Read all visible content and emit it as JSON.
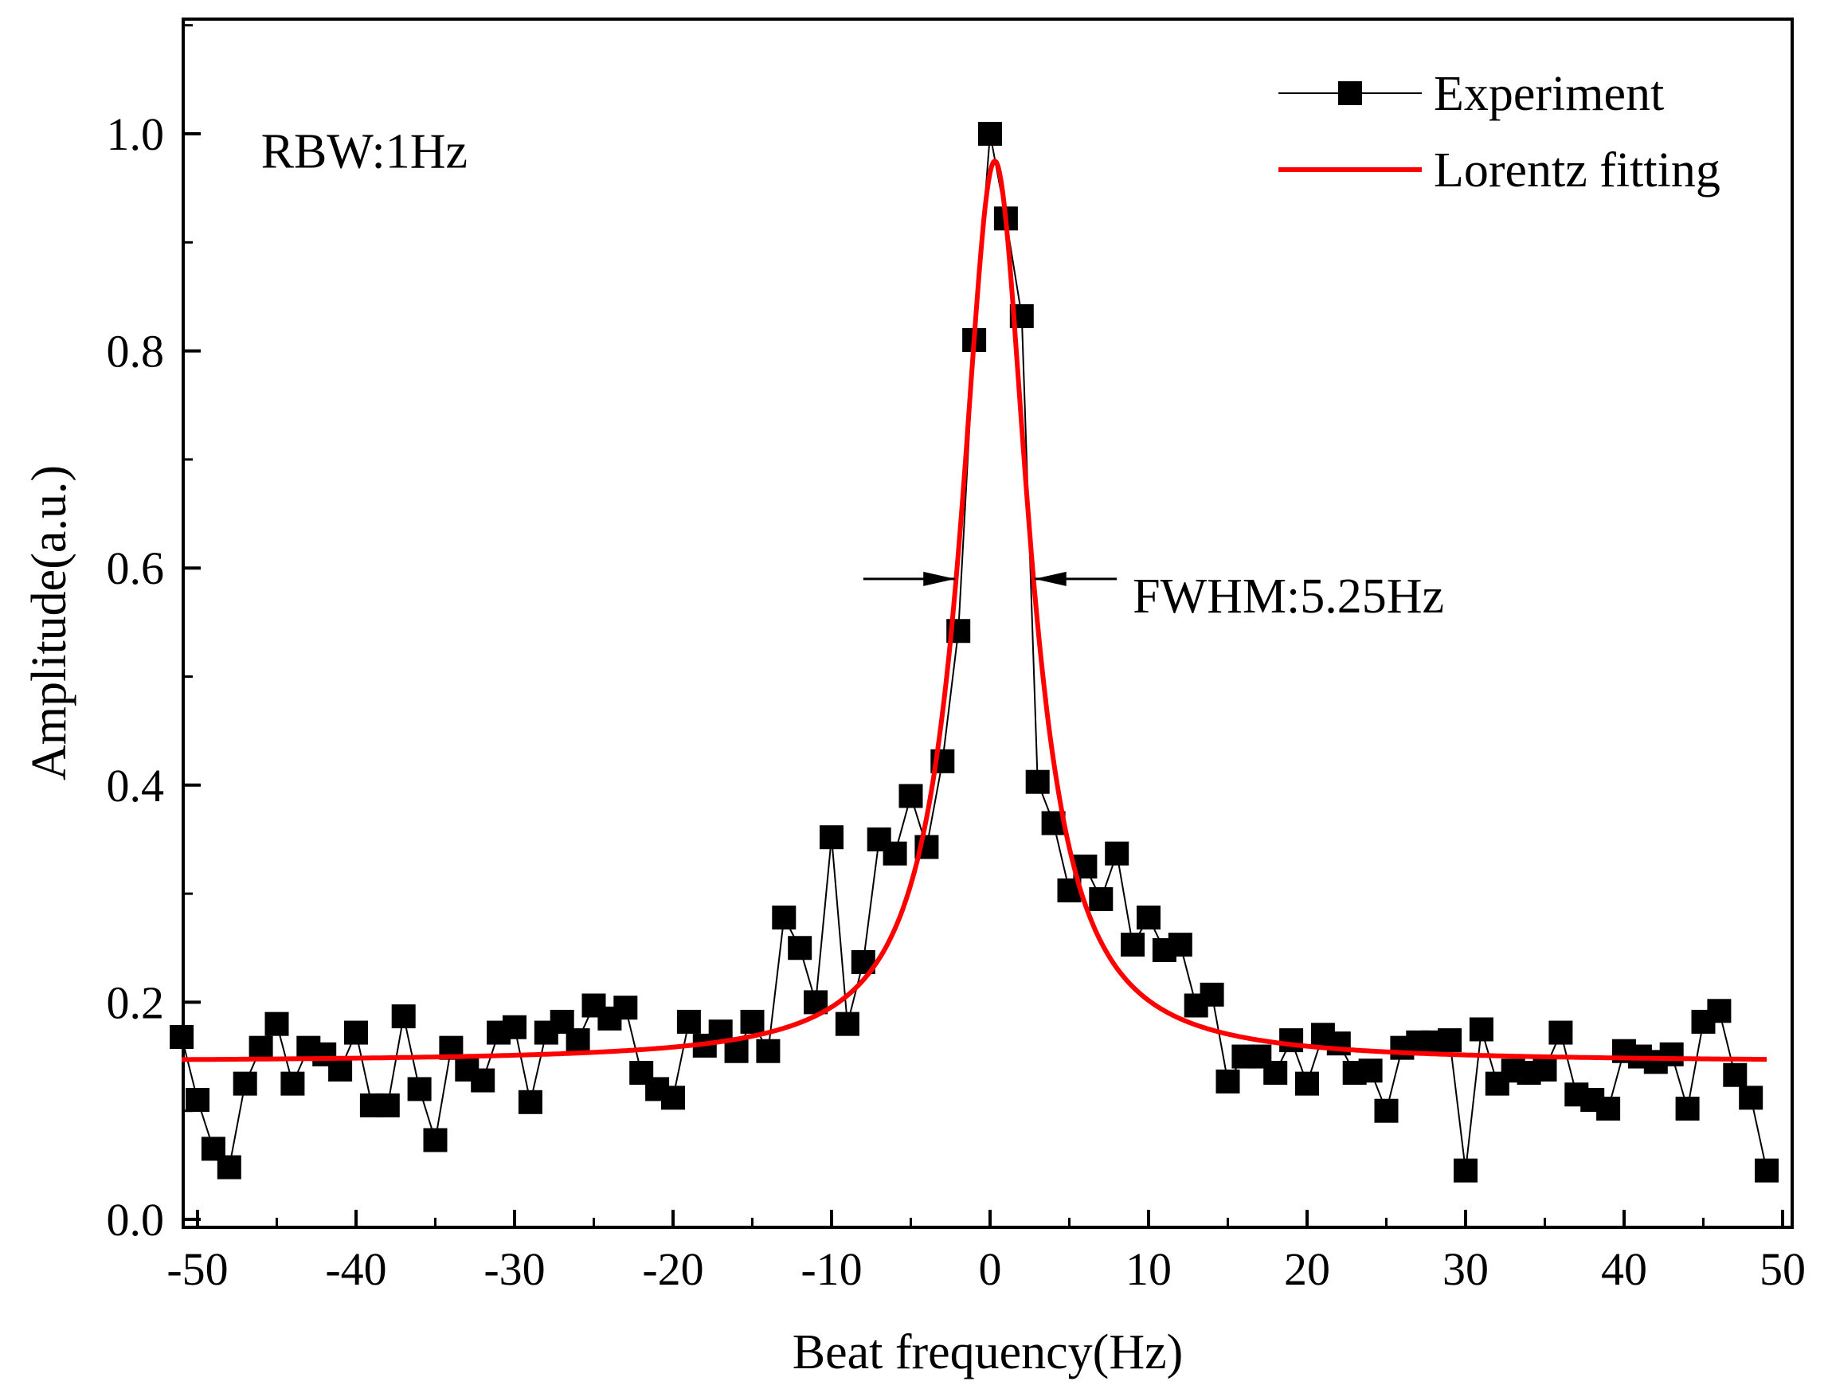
{
  "chart_data": {
    "type": "scatter",
    "title": "",
    "xlabel": "Beat frequency(Hz)",
    "ylabel": "Amplitude(a.u.)",
    "xlim": [
      -51,
      51
    ],
    "ylim": [
      0.0,
      1.1
    ],
    "xticks": [
      -50,
      -40,
      -30,
      -20,
      -10,
      0,
      10,
      20,
      30,
      40,
      50
    ],
    "xtick_labels": [
      "-50",
      "-40",
      "-30",
      "-20",
      "-10",
      "0",
      "10",
      "20",
      "30",
      "40",
      "50"
    ],
    "yticks": [
      0.0,
      0.2,
      0.4,
      0.6,
      0.8,
      1.0
    ],
    "ytick_labels": [
      "0.0",
      "0.2",
      "0.4",
      "0.6",
      "0.8",
      "1.0"
    ],
    "grid": false,
    "legend_position": "top-right",
    "legend": [
      "Experiment",
      "Lorentz fitting"
    ],
    "series": [
      {
        "name": "Experiment",
        "style": "line-with-square-markers",
        "color": "#000000",
        "x": [
          -51,
          -50,
          -49,
          -48,
          -47,
          -46,
          -45,
          -44,
          -43,
          -42,
          -41,
          -40,
          -39,
          -38,
          -37,
          -36,
          -35,
          -34,
          -33,
          -32,
          -31,
          -30,
          -29,
          -28,
          -27,
          -26,
          -25,
          -24,
          -23,
          -22,
          -21,
          -20,
          -19,
          -18,
          -17,
          -16,
          -15,
          -14,
          -13,
          -12,
          -11,
          -10,
          -9,
          -8,
          -7,
          -6,
          -5,
          -4,
          -3,
          -2,
          -1,
          0,
          1,
          2,
          3,
          4,
          5,
          6,
          7,
          8,
          9,
          10,
          11,
          12,
          13,
          14,
          15,
          16,
          17,
          18,
          19,
          20,
          21,
          22,
          23,
          24,
          25,
          26,
          27,
          28,
          29,
          30,
          31,
          32,
          33,
          34,
          35,
          36,
          37,
          38,
          39,
          40,
          41,
          42,
          43,
          44,
          45,
          46,
          47,
          48,
          49
        ],
        "y": [
          0.168,
          0.11,
          0.065,
          0.048,
          0.125,
          0.158,
          0.18,
          0.125,
          0.158,
          0.152,
          0.138,
          0.172,
          0.105,
          0.105,
          0.187,
          0.12,
          0.073,
          0.158,
          0.138,
          0.128,
          0.172,
          0.177,
          0.108,
          0.172,
          0.182,
          0.165,
          0.197,
          0.185,
          0.195,
          0.135,
          0.12,
          0.112,
          0.182,
          0.16,
          0.173,
          0.155,
          0.182,
          0.155,
          0.278,
          0.25,
          0.2,
          0.352,
          0.18,
          0.237,
          0.35,
          0.337,
          0.39,
          0.343,
          0.422,
          0.542,
          0.81,
          1.0,
          0.922,
          0.832,
          0.403,
          0.365,
          0.303,
          0.325,
          0.295,
          0.337,
          0.253,
          0.278,
          0.248,
          0.253,
          0.197,
          0.207,
          0.127,
          0.15,
          0.15,
          0.135,
          0.165,
          0.125,
          0.17,
          0.162,
          0.135,
          0.137,
          0.1,
          0.158,
          0.163,
          0.163,
          0.165,
          0.045,
          0.175,
          0.125,
          0.137,
          0.135,
          0.138,
          0.172,
          0.115,
          0.11,
          0.102,
          0.155,
          0.15,
          0.145,
          0.152,
          0.102,
          0.182,
          0.192,
          0.133,
          0.112,
          0.045
        ]
      },
      {
        "name": "Lorentz fitting",
        "style": "line",
        "color": "#ff0000",
        "model": "lorentzian",
        "x_range": [
          -51,
          49
        ],
        "y0": 0.145,
        "peak": 0.975,
        "center": 0.3,
        "fwhm": 5.25
      }
    ],
    "annotations": [
      {
        "text": "RBW:1Hz",
        "x": -46,
        "y": 0.985
      },
      {
        "text": "FWHM:5.25Hz",
        "x": 9,
        "y": 0.59,
        "arrows": [
          {
            "from_x": -8,
            "to_x": -2.2,
            "y": 0.59
          },
          {
            "from_x": 8,
            "to_x": 2.8,
            "y": 0.59
          }
        ]
      }
    ]
  }
}
